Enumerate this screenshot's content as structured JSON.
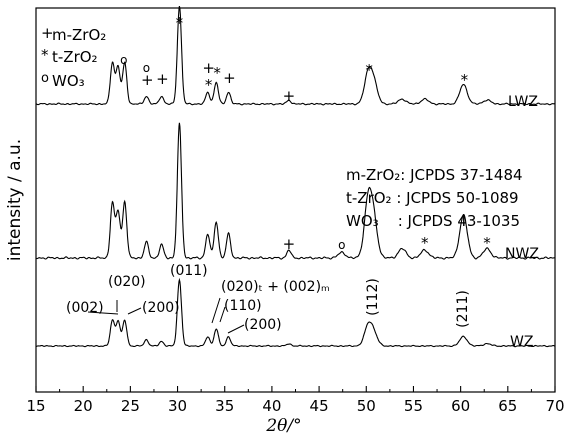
{
  "chart_data": {
    "type": "line",
    "xlabel": "2θ/°",
    "ylabel": "intensity / a.u.",
    "xlim": [
      15,
      70
    ],
    "x_ticks": [
      "15",
      "20",
      "25",
      "30",
      "35",
      "40",
      "45",
      "50",
      "55",
      "60",
      "65",
      "70"
    ],
    "legend": [
      {
        "symbol": "+",
        "text": "m-ZrO₂"
      },
      {
        "symbol": "*",
        "text": "t-ZrO₂"
      },
      {
        "symbol": "o",
        "text": "WO₃"
      }
    ],
    "reference_cards": [
      "m-ZrO₂: JCPDS 37-1484",
      "t-ZrO₂ : JCPDS 50-1089",
      "WO₃    : JCPDS 43-1035"
    ],
    "series": [
      {
        "name": "LWZ",
        "baseline": 0,
        "peaks": [
          [
            23.1,
            0.42
          ],
          [
            23.7,
            0.38
          ],
          [
            24.4,
            0.42
          ],
          [
            26.7,
            0.08
          ],
          [
            28.3,
            0.08
          ],
          [
            30.2,
            1.0
          ],
          [
            33.2,
            0.12
          ],
          [
            34.1,
            0.22
          ],
          [
            35.4,
            0.12
          ],
          [
            41.8,
            0.04
          ],
          [
            50.2,
            0.3
          ],
          [
            50.8,
            0.2
          ],
          [
            53.8,
            0.05
          ],
          [
            56.2,
            0.05
          ],
          [
            60.3,
            0.2
          ],
          [
            62.8,
            0.04
          ]
        ],
        "markers": [
          {
            "x": 24.3,
            "sym": "o"
          },
          {
            "x": 26.7,
            "sym": "o"
          },
          {
            "x": 26.8,
            "sym": "+"
          },
          {
            "x": 28.4,
            "sym": "+"
          },
          {
            "x": 30.2,
            "sym": "*"
          },
          {
            "x": 33.3,
            "sym": "+"
          },
          {
            "x": 33.3,
            "sym": "*"
          },
          {
            "x": 34.2,
            "sym": "*"
          },
          {
            "x": 35.5,
            "sym": "+"
          },
          {
            "x": 41.8,
            "sym": "+"
          },
          {
            "x": 50.3,
            "sym": "*"
          },
          {
            "x": 60.4,
            "sym": "*"
          }
        ]
      },
      {
        "name": "NWZ",
        "baseline": 0,
        "peaks": [
          [
            23.1,
            0.41
          ],
          [
            23.7,
            0.35
          ],
          [
            24.4,
            0.42
          ],
          [
            26.7,
            0.12
          ],
          [
            28.3,
            0.1
          ],
          [
            30.2,
            1.0
          ],
          [
            33.2,
            0.18
          ],
          [
            34.1,
            0.27
          ],
          [
            35.4,
            0.18
          ],
          [
            41.8,
            0.06
          ],
          [
            47.4,
            0.04
          ],
          [
            50.2,
            0.42
          ],
          [
            50.8,
            0.25
          ],
          [
            53.8,
            0.07
          ],
          [
            56.2,
            0.06
          ],
          [
            60.3,
            0.32
          ],
          [
            62.8,
            0.07
          ]
        ],
        "markers": [
          {
            "x": 41.8,
            "sym": "+"
          },
          {
            "x": 47.4,
            "sym": "o"
          },
          {
            "x": 56.2,
            "sym": "*"
          },
          {
            "x": 62.8,
            "sym": "*"
          }
        ]
      },
      {
        "name": "WZ",
        "baseline": 0,
        "peaks": [
          [
            23.1,
            0.33
          ],
          [
            23.7,
            0.32
          ],
          [
            24.4,
            0.33
          ],
          [
            26.7,
            0.08
          ],
          [
            28.3,
            0.06
          ],
          [
            30.2,
            0.85
          ],
          [
            33.2,
            0.12
          ],
          [
            34.1,
            0.22
          ],
          [
            35.4,
            0.12
          ],
          [
            41.8,
            0.03
          ],
          [
            50.2,
            0.25
          ],
          [
            50.8,
            0.15
          ],
          [
            60.3,
            0.12
          ],
          [
            62.8,
            0.03
          ]
        ],
        "annotations": [
          {
            "text": "(002)",
            "x": 23.1
          },
          {
            "text": "(020)",
            "x": 23.7
          },
          {
            "text": "(200)",
            "x": 24.4
          },
          {
            "text": "(011)",
            "x": 30.2
          },
          {
            "text": "(020)ₜ + (002)ₘ",
            "x": 33.3
          },
          {
            "text": "(110)",
            "x": 34.1
          },
          {
            "text": "(200)",
            "x": 35.4
          },
          {
            "text": "(112)",
            "x": 50.2
          },
          {
            "text": "(211)",
            "x": 60.3
          }
        ]
      }
    ]
  }
}
